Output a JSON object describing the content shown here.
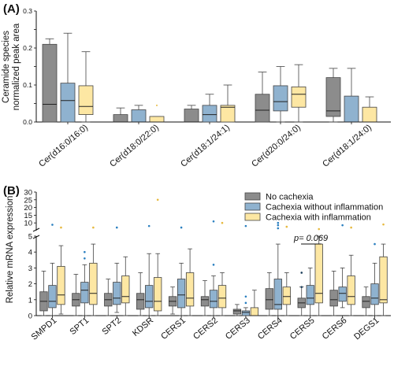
{
  "colors": {
    "no_cachexia": "#8c8c8c",
    "without_inflammation": "#8fb2cf",
    "with_inflammation": "#fde7a3",
    "outlier_dark": "#1d3f5c",
    "outlier_blue": "#2a7fc0",
    "outlier_yellow": "#e7b93f"
  },
  "chart_data": [
    {
      "panel": "(A)",
      "type": "box",
      "ylabel": "Ceramide species\nnormalized peak area",
      "ylim": [
        0,
        0.3
      ],
      "yticks": [
        "0.0",
        "0.1",
        "0.2",
        "0.3"
      ],
      "categories": [
        "Cer(d16:0/16:0)",
        "Cer(d18:0/22:0)",
        "Cer(d18:1/24:1)",
        "Cer(d20:0/24:0)",
        "Cer(d18:1/24:0)"
      ],
      "series": [
        {
          "name": "No cachexia",
          "boxes": [
            {
              "min": 0.0,
              "q1": 0.0,
              "median": 0.048,
              "q3": 0.21,
              "max": 0.225
            },
            {
              "min": 0.0,
              "q1": 0.0,
              "median": 0.0,
              "q3": 0.02,
              "max": 0.038
            },
            {
              "min": 0.0,
              "q1": 0.0,
              "median": 0.0,
              "q3": 0.035,
              "max": 0.045
            },
            {
              "min": 0.0,
              "q1": 0.0,
              "median": 0.032,
              "q3": 0.075,
              "max": 0.135
            },
            {
              "min": 0.0,
              "q1": 0.015,
              "median": 0.03,
              "q3": 0.12,
              "max": 0.145
            }
          ]
        },
        {
          "name": "Cachexia without inflammation",
          "boxes": [
            {
              "min": 0.0,
              "q1": 0.0,
              "median": 0.058,
              "q3": 0.105,
              "max": 0.24
            },
            {
              "min": 0.0,
              "q1": 0.0,
              "median": 0.0,
              "q3": 0.033,
              "max": 0.045
            },
            {
              "min": 0.0,
              "q1": 0.0,
              "median": 0.02,
              "q3": 0.045,
              "max": 0.075
            },
            {
              "min": 0.0,
              "q1": 0.03,
              "median": 0.055,
              "q3": 0.098,
              "max": 0.15
            },
            {
              "min": 0.0,
              "q1": 0.0,
              "median": 0.0,
              "q3": 0.07,
              "max": 0.145
            }
          ]
        },
        {
          "name": "Cachexia with inflammation",
          "boxes": [
            {
              "min": 0.0,
              "q1": 0.02,
              "median": 0.042,
              "q3": 0.098,
              "max": 0.19
            },
            {
              "min": 0.0,
              "q1": 0.0,
              "median": 0.0,
              "q3": 0.015,
              "max": 0.015,
              "outliers": [
                0.045
              ]
            },
            {
              "min": 0.0,
              "q1": 0.0,
              "median": 0.04,
              "q3": 0.045,
              "max": 0.1
            },
            {
              "min": 0.0,
              "q1": 0.04,
              "median": 0.075,
              "q3": 0.095,
              "max": 0.155
            },
            {
              "min": 0.0,
              "q1": 0.0,
              "median": 0.0,
              "q3": 0.04,
              "max": 0.068
            }
          ]
        }
      ]
    },
    {
      "panel": "(B)",
      "type": "box",
      "ylabel": "Relative mRNA expression",
      "axis_break": true,
      "ylim_lower": [
        0,
        5
      ],
      "ylim_upper": [
        5,
        30
      ],
      "yticks": [
        "0",
        "1",
        "2",
        "3",
        "4",
        "5",
        "10",
        "15",
        "20",
        "25",
        "30"
      ],
      "categories": [
        "SMPD1",
        "SPT1",
        "SPT2",
        "KDSR",
        "CERS1",
        "CERS2",
        "CERS3",
        "CERS4",
        "CERS5",
        "CERS6",
        "DEGS1"
      ],
      "legend": [
        "No cachexia",
        "Cachexia without inflammation",
        "Cachexia with inflammation"
      ],
      "annotation": {
        "text": "p= 0.069",
        "between": "CERS5"
      },
      "series": [
        {
          "name": "No cachexia",
          "boxes": [
            {
              "min": 0.0,
              "q1": 0.3,
              "median": 0.9,
              "q3": 1.5,
              "max": 2.8
            },
            {
              "min": 0.0,
              "q1": 0.6,
              "median": 1.0,
              "q3": 1.4,
              "max": 2.6
            },
            {
              "min": 0.0,
              "q1": 0.6,
              "median": 1.0,
              "q3": 1.4,
              "max": 2.3
            },
            {
              "min": 0.0,
              "q1": 0.4,
              "median": 1.0,
              "q3": 1.4,
              "max": 2.7
            },
            {
              "min": 0.1,
              "q1": 0.6,
              "median": 0.9,
              "q3": 1.2,
              "max": 1.8
            },
            {
              "min": 0.0,
              "q1": 0.6,
              "median": 1.0,
              "q3": 1.2,
              "max": 2.2
            },
            {
              "min": 0.0,
              "q1": 0.1,
              "median": 0.3,
              "q3": 0.4,
              "max": 0.7
            },
            {
              "min": 0.0,
              "q1": 0.4,
              "median": 1.0,
              "q3": 1.7,
              "max": 2.7
            },
            {
              "min": 0.0,
              "q1": 0.5,
              "median": 0.8,
              "q3": 1.1,
              "max": 1.8,
              "outliers": [
                1.8,
                2.7
              ]
            },
            {
              "min": 0.0,
              "q1": 0.6,
              "median": 1.0,
              "q3": 1.6,
              "max": 2.8
            },
            {
              "min": 0.0,
              "q1": 0.5,
              "median": 0.9,
              "q3": 1.2,
              "max": 1.8
            }
          ]
        },
        {
          "name": "Cachexia without inflammation",
          "boxes": [
            {
              "min": 0.0,
              "q1": 0.5,
              "median": 0.9,
              "q3": 1.9,
              "max": 3.3,
              "outliers": [
                8.8
              ]
            },
            {
              "min": 0.0,
              "q1": 0.8,
              "median": 1.6,
              "q3": 2.1,
              "max": 3.2,
              "outliers": [
                3.6,
                4.0
              ]
            },
            {
              "min": 0.2,
              "q1": 0.7,
              "median": 1.1,
              "q3": 2.1,
              "max": 3.3,
              "outliers": [
                7.0
              ]
            },
            {
              "min": 0.0,
              "q1": 0.5,
              "median": 0.9,
              "q3": 1.9,
              "max": 3.9,
              "outliers": [
                8.0
              ]
            },
            {
              "min": 0.0,
              "q1": 0.5,
              "median": 1.3,
              "q3": 2.3,
              "max": 3.3,
              "outliers": [
                7.0
              ]
            },
            {
              "min": 0.0,
              "q1": 0.5,
              "median": 0.9,
              "q3": 1.6,
              "max": 2.5,
              "outliers": [
                3.2,
                11.0
              ]
            },
            {
              "min": 0.0,
              "q1": 0.0,
              "median": 0.2,
              "q3": 0.3,
              "max": 0.5,
              "outliers": [
                0.8,
                1.2,
                8.0
              ]
            },
            {
              "min": 0.0,
              "q1": 0.4,
              "median": 0.7,
              "q3": 2.3,
              "max": 4.5,
              "outliers": [
                10.0,
                8.5,
                6.5
              ]
            },
            {
              "min": 0.0,
              "q1": 0.7,
              "median": 1.1,
              "q3": 1.9,
              "max": 3.0
            },
            {
              "min": 0.5,
              "q1": 0.9,
              "median": 1.4,
              "q3": 1.8,
              "max": 3.0,
              "outliers": [
                8.5
              ]
            },
            {
              "min": 0.0,
              "q1": 0.7,
              "median": 1.1,
              "q3": 2.0,
              "max": 3.3,
              "outliers": [
                4.5
              ]
            }
          ]
        },
        {
          "name": "Cachexia with inflammation",
          "boxes": [
            {
              "min": 0.1,
              "q1": 0.7,
              "median": 1.3,
              "q3": 3.1,
              "max": 4.4,
              "outliers": [
                7.0
              ]
            },
            {
              "min": 0.0,
              "q1": 0.7,
              "median": 1.4,
              "q3": 3.3,
              "max": 4.5,
              "outliers": [
                7.0
              ]
            },
            {
              "min": 0.0,
              "q1": 0.8,
              "median": 1.2,
              "q3": 2.5,
              "max": 3.7
            },
            {
              "min": 0.0,
              "q1": 0.3,
              "median": 0.9,
              "q3": 2.4,
              "max": 3.9,
              "outliers": [
                25.0
              ]
            },
            {
              "min": 0.0,
              "q1": 0.6,
              "median": 1.1,
              "q3": 2.7,
              "max": 4.2
            },
            {
              "min": 0.0,
              "q1": 0.5,
              "median": 1.1,
              "q3": 1.9,
              "max": 2.7,
              "outliers": [
                10.0
              ]
            },
            {
              "min": 0.0,
              "q1": 0.0,
              "median": 0.0,
              "q3": 0.5,
              "max": 1.6
            },
            {
              "min": 0.0,
              "q1": 0.7,
              "median": 1.2,
              "q3": 1.8,
              "max": 2.7,
              "outliers": [
                7.5
              ]
            },
            {
              "min": 0.0,
              "q1": 0.8,
              "median": 1.4,
              "q3": 4.5,
              "max": 5.0,
              "outliers": [
                6.0
              ]
            },
            {
              "min": 0.0,
              "q1": 0.7,
              "median": 1.2,
              "q3": 2.5,
              "max": 3.8,
              "outliers": [
                7.0
              ]
            },
            {
              "min": 0.0,
              "q1": 0.8,
              "median": 1.0,
              "q3": 3.7,
              "max": 4.5,
              "outliers": [
                9.0
              ]
            }
          ]
        }
      ]
    }
  ]
}
